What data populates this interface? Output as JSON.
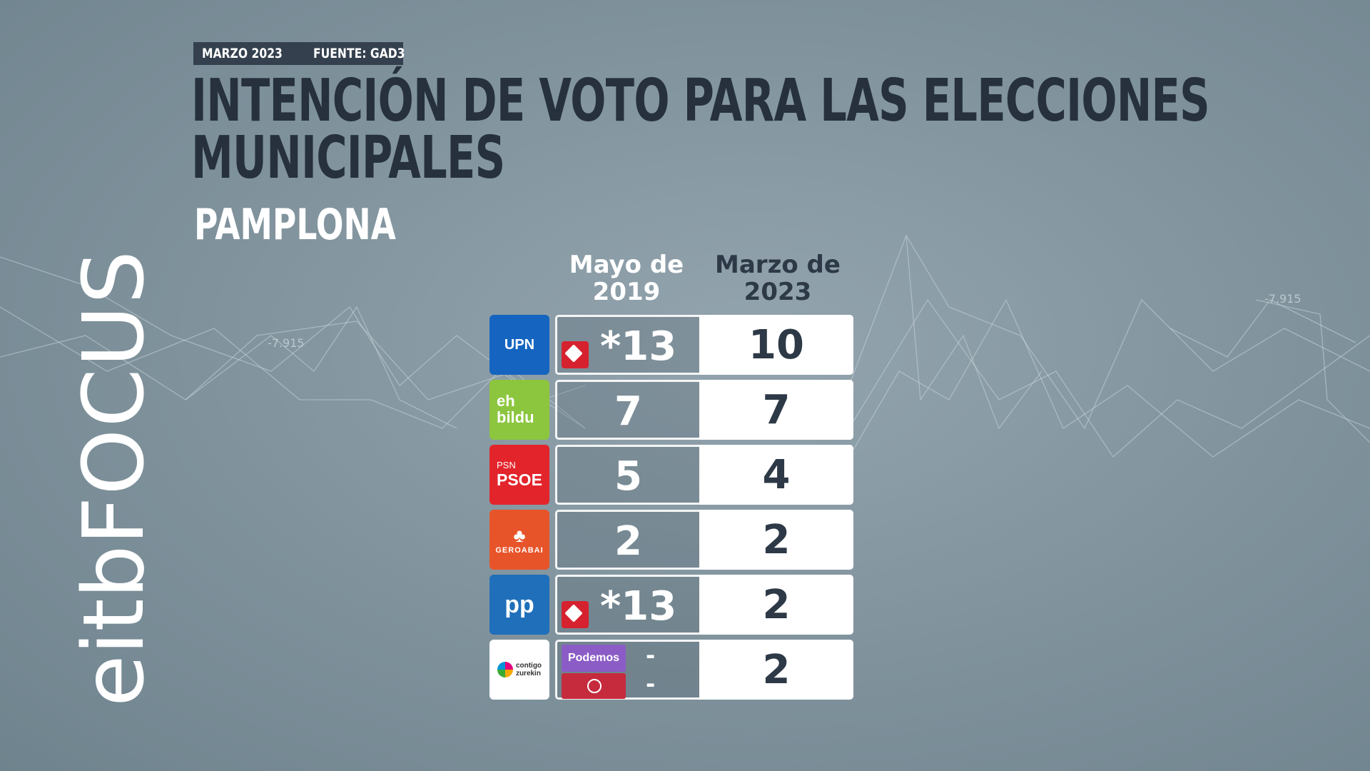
{
  "header": {
    "date": "MARZO 2023",
    "source": "FUENTE: GAD3"
  },
  "title_line1": "INTENCIÓN DE VOTO PARA LAS ELECCIONES",
  "title_line2": "MUNICIPALES",
  "subtitle": "PAMPLONA",
  "brand": {
    "part1": "eitb",
    "part2": "FOCUS"
  },
  "colors": {
    "upn": "#1565c0",
    "bildu": "#8cc63f",
    "psoe": "#e3242b",
    "geroa": "#e8542a",
    "pp": "#1f6fba",
    "contigo": "#ffffff",
    "na_plus": "#d6212e",
    "podemos": "#8b5cc6"
  },
  "chart_data": {
    "type": "table",
    "columns": [
      "Mayo de 2019",
      "Marzo de 2023"
    ],
    "rows": [
      {
        "party": "UPN",
        "v2019": "*13",
        "v2023": "10",
        "coalition_icon": "na-plus"
      },
      {
        "party": "eh bildu",
        "v2019": "7",
        "v2023": "7"
      },
      {
        "party": "PSN PSOE",
        "v2019": "5",
        "v2023": "4"
      },
      {
        "party": "GEROABAI",
        "v2019": "2",
        "v2023": "2"
      },
      {
        "party": "PP",
        "v2019": "*13",
        "v2023": "2",
        "coalition_icon": "na-plus"
      },
      {
        "party": "contigo zurekin",
        "v2019": [
          "-",
          "-"
        ],
        "v2023": "2",
        "sub_labels": [
          "Podemos"
        ]
      }
    ]
  },
  "col1_line1": "Mayo de",
  "col1_line2": "2019",
  "col2_line1": "Marzo de",
  "col2_line2": "2023",
  "logos": {
    "upn": "UPN",
    "bildu_1": "eh",
    "bildu_2": "bildu",
    "psoe_1": "PSN",
    "psoe_2": "PSOE",
    "geroa": "GEROABAI",
    "pp": "pp",
    "contigo_1": "contigo",
    "contigo_2": "zurekin"
  }
}
